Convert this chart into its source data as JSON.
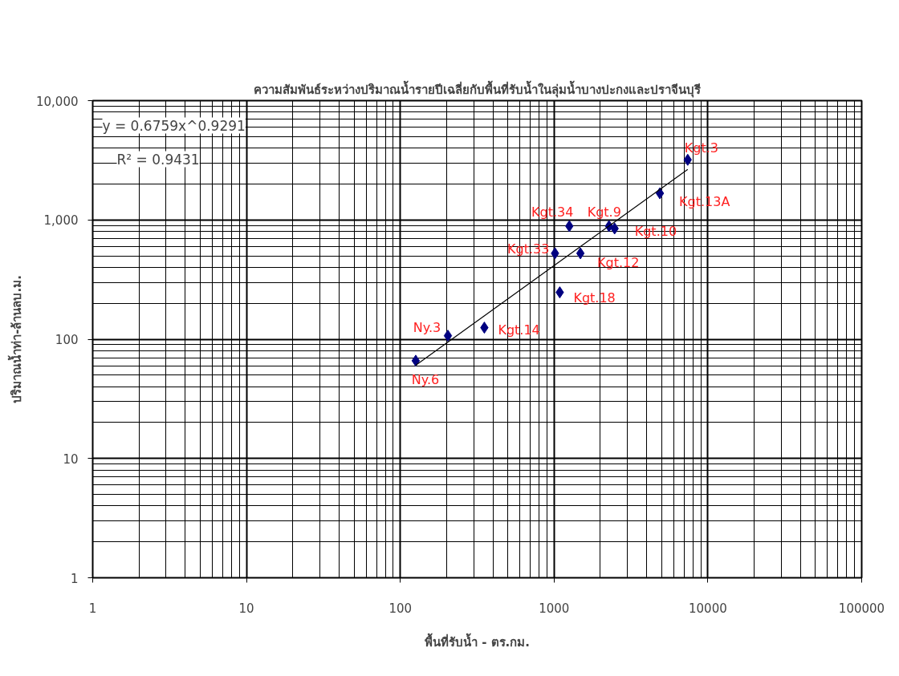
{
  "chart_data": {
    "type": "scatter",
    "title": "ความสัมพันธ์ระหว่างปริมาณน้ำรายปีเฉลี่ยกับพื้นที่รับน้ำในลุ่มน้ำบางปะกงและปราจีนบุรี",
    "xlabel": "พื้นที่รับน้ำ - ตร.กม.",
    "ylabel": "ปริมาณน้ำท่า-ล้านลบ.ม.",
    "log": "xy",
    "xlim": [
      1,
      100000
    ],
    "ylim": [
      1,
      10000
    ],
    "xticks": [
      1,
      10,
      100,
      1000,
      10000,
      100000
    ],
    "yticks": [
      1,
      10,
      100,
      {
        "value": 1000,
        "label": "1,000"
      },
      {
        "value": 10000,
        "label": "10,000"
      }
    ],
    "grid": true,
    "annotations": [
      "y = 0.6759x^0.9291",
      "R² = 0.9431"
    ],
    "series": [
      {
        "color": "#000080",
        "marker": "diamond",
        "x": [
          126,
          204,
          352,
          1089,
          1014,
          1483,
          1256,
          2276,
          2475,
          4875,
          7395
        ],
        "values": [
          66,
          107,
          125,
          247,
          525,
          525,
          887,
          887,
          847,
          1671,
          3191
        ],
        "value_labels": [
          "Ny.6",
          "Ny.3",
          "Kgt.14",
          "Kgt.18",
          "Kgt.33",
          "Kgt.12",
          "Kgt.34",
          "Kgt.9",
          "Kgt.10",
          "Kgt.13A",
          "Kgt.3"
        ]
      },
      {
        "type": "line",
        "color": "#000000",
        "marker": "none",
        "line_style": "solid",
        "x": [
          126,
          7395
        ],
        "values": [
          60.4,
          2656
        ]
      }
    ]
  }
}
